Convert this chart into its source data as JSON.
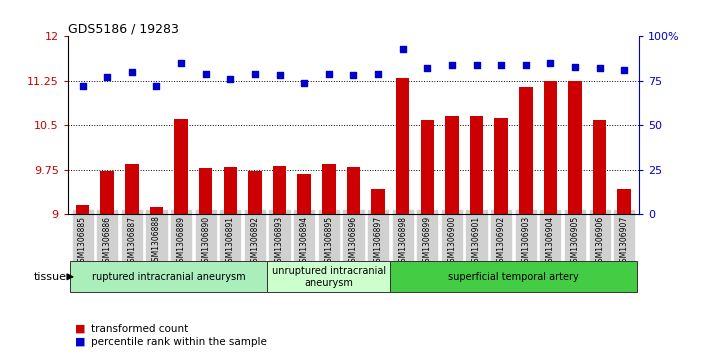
{
  "title": "GDS5186 / 19283",
  "samples": [
    "GSM1306885",
    "GSM1306886",
    "GSM1306887",
    "GSM1306888",
    "GSM1306889",
    "GSM1306890",
    "GSM1306891",
    "GSM1306892",
    "GSM1306893",
    "GSM1306894",
    "GSM1306895",
    "GSM1306896",
    "GSM1306897",
    "GSM1306898",
    "GSM1306899",
    "GSM1306900",
    "GSM1306901",
    "GSM1306902",
    "GSM1306903",
    "GSM1306904",
    "GSM1306905",
    "GSM1306906",
    "GSM1306907"
  ],
  "transformed_count": [
    9.15,
    9.72,
    9.85,
    9.12,
    10.6,
    9.78,
    9.8,
    9.73,
    9.82,
    9.67,
    9.85,
    9.79,
    9.42,
    11.3,
    10.58,
    10.65,
    10.65,
    10.62,
    11.15,
    11.25,
    11.25,
    10.58,
    9.42
  ],
  "percentile_rank": [
    72,
    77,
    80,
    72,
    85,
    79,
    76,
    79,
    78,
    74,
    79,
    78,
    79,
    93,
    82,
    84,
    84,
    84,
    84,
    85,
    83,
    82,
    81
  ],
  "ylim_left": [
    9,
    12
  ],
  "ylim_right": [
    0,
    100
  ],
  "yticks_left": [
    9,
    9.75,
    10.5,
    11.25,
    12
  ],
  "yticks_right": [
    0,
    25,
    50,
    75,
    100
  ],
  "hlines": [
    9.75,
    10.5,
    11.25
  ],
  "bar_color": "#cc0000",
  "dot_color": "#0000cc",
  "groups": [
    {
      "label": "ruptured intracranial aneurysm",
      "start": 0,
      "end": 8,
      "color": "#aaeebb"
    },
    {
      "label": "unruptured intracranial\naneurysm",
      "start": 8,
      "end": 13,
      "color": "#ccffcc"
    },
    {
      "label": "superficial temporal artery",
      "start": 13,
      "end": 23,
      "color": "#44cc44"
    }
  ],
  "tissue_label": "tissue",
  "legend_bar_label": "transformed count",
  "legend_dot_label": "percentile rank within the sample",
  "plot_bg": "#ffffff",
  "fig_bg": "#ffffff",
  "xticklabel_bg": "#d0d0d0"
}
